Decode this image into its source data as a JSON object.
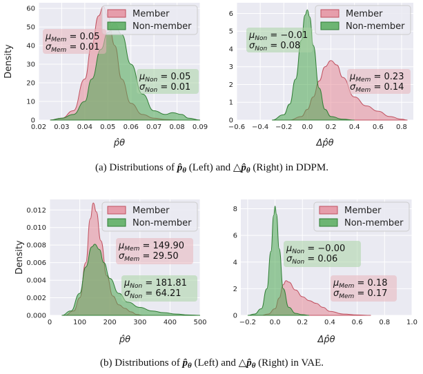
{
  "colors": {
    "member": "#e58a98",
    "member_edge": "#c0505f",
    "non": "#4da852",
    "non_edge": "#2f7d34",
    "plot_bg": "#eaeaf2",
    "grid": "#ffffff"
  },
  "captions": {
    "a": {
      "prefix": "(a)  Distributions of",
      "left": "(Left) and",
      "right": "(Right) in DDPM."
    },
    "b": {
      "prefix": "(b)  Distributions of",
      "left": "(Left) and",
      "right": "(Right) in VAE."
    }
  },
  "chart_data": [
    {
      "id": "ddpm-left",
      "type": "area",
      "ylabel": "Density",
      "xlabel": "p̂θ",
      "xlim": [
        0.02,
        0.09
      ],
      "ylim": [
        0,
        63
      ],
      "xticks": [
        "0.02",
        "0.03",
        "0.04",
        "0.05",
        "0.06",
        "0.07",
        "0.08",
        "0.09"
      ],
      "yticks": [
        "0",
        "10",
        "20",
        "30",
        "40",
        "50",
        "60"
      ],
      "grid": true,
      "legend": {
        "position": "top-right",
        "entries": [
          "Member",
          "Non-member"
        ]
      },
      "series": [
        {
          "name": "Member",
          "x": [
            0.025,
            0.03,
            0.035,
            0.04,
            0.043,
            0.046,
            0.048,
            0.05,
            0.053,
            0.056,
            0.06,
            0.065,
            0.07,
            0.075,
            0.08
          ],
          "y": [
            0,
            1,
            5,
            22,
            40,
            56,
            61,
            56,
            40,
            22,
            9,
            3,
            1,
            0.3,
            0
          ]
        },
        {
          "name": "Non-member",
          "x": [
            0.025,
            0.03,
            0.035,
            0.04,
            0.043,
            0.047,
            0.05,
            0.053,
            0.056,
            0.06,
            0.065,
            0.07,
            0.075,
            0.078,
            0.082,
            0.085,
            0.09
          ],
          "y": [
            0,
            1,
            3,
            10,
            22,
            38,
            47,
            52,
            46,
            30,
            14,
            5,
            3,
            4,
            3,
            1,
            0
          ]
        }
      ],
      "annotations": [
        {
          "series": "Member",
          "mu_label": "μ",
          "mu_sub": "Mem",
          "mu": "0.05",
          "sigma_label": "σ",
          "sigma_sub": "Mem",
          "sigma": "0.01"
        },
        {
          "series": "Non-member",
          "mu_label": "μ",
          "mu_sub": "Non",
          "mu": "0.05",
          "sigma_label": "σ",
          "sigma_sub": "Non",
          "sigma": "0.01"
        }
      ]
    },
    {
      "id": "ddpm-right",
      "type": "area",
      "ylabel": "",
      "xlabel": "Δp̂θ",
      "xlim": [
        -0.6,
        0.9
      ],
      "ylim": [
        0,
        6.6
      ],
      "xticks": [
        "−0.6",
        "−0.4",
        "−0.2",
        "0.0",
        "0.2",
        "0.4",
        "0.6",
        "0.8"
      ],
      "yticks": [
        "0",
        "1",
        "2",
        "3",
        "4",
        "5",
        "6"
      ],
      "grid": true,
      "legend": {
        "position": "top-right",
        "entries": [
          "Member",
          "Non-member"
        ]
      },
      "series": [
        {
          "name": "Member",
          "x": [
            -0.15,
            -0.05,
            0.0,
            0.05,
            0.1,
            0.15,
            0.2,
            0.25,
            0.3,
            0.4,
            0.5,
            0.6,
            0.7,
            0.8,
            0.85
          ],
          "y": [
            0,
            0.2,
            0.6,
            1.3,
            2.2,
            3.0,
            3.35,
            3.1,
            2.4,
            1.3,
            0.8,
            0.5,
            0.2,
            0.05,
            0
          ]
        },
        {
          "name": "Non-member",
          "x": [
            -0.3,
            -0.2,
            -0.15,
            -0.1,
            -0.05,
            -0.02,
            0.0,
            0.02,
            0.05,
            0.1,
            0.15,
            0.2,
            0.3,
            0.4
          ],
          "y": [
            0,
            0.3,
            0.9,
            2.3,
            4.5,
            5.9,
            6.2,
            5.8,
            4.2,
            1.8,
            0.6,
            0.2,
            0.05,
            0
          ]
        }
      ],
      "annotations": [
        {
          "series": "Non-member",
          "mu_label": "μ",
          "mu_sub": "Non",
          "mu": "−0.01",
          "sigma_label": "σ",
          "sigma_sub": "Non",
          "sigma": "0.08"
        },
        {
          "series": "Member",
          "mu_label": "μ",
          "mu_sub": "Mem",
          "mu": "0.23",
          "sigma_label": "σ",
          "sigma_sub": "Mem",
          "sigma": "0.14"
        }
      ]
    },
    {
      "id": "vae-left",
      "type": "area",
      "ylabel": "Density",
      "xlabel": "p̂θ",
      "xlim": [
        0,
        500
      ],
      "ylim": [
        0,
        0.0132
      ],
      "xticks": [
        "0",
        "100",
        "200",
        "300",
        "400",
        "500"
      ],
      "yticks": [
        "0.000",
        "0.002",
        "0.004",
        "0.006",
        "0.008",
        "0.010",
        "0.012"
      ],
      "grid": true,
      "legend": {
        "position": "top-right",
        "entries": [
          "Member",
          "Non-member"
        ]
      },
      "series": [
        {
          "name": "Member",
          "x": [
            50,
            80,
            100,
            120,
            135,
            145,
            155,
            170,
            190,
            210,
            230,
            250,
            270,
            290,
            310
          ],
          "y": [
            0,
            0.0005,
            0.002,
            0.006,
            0.011,
            0.0128,
            0.0118,
            0.0085,
            0.0045,
            0.0022,
            0.0012,
            0.0008,
            0.0004,
            0.0001,
            0
          ]
        },
        {
          "name": "Non-member",
          "x": [
            40,
            70,
            100,
            120,
            140,
            150,
            165,
            180,
            200,
            230,
            260,
            300,
            340,
            380,
            420,
            460,
            500
          ],
          "y": [
            0,
            0.0005,
            0.0025,
            0.0055,
            0.0078,
            0.0081,
            0.0075,
            0.006,
            0.0042,
            0.0025,
            0.0015,
            0.0009,
            0.0005,
            0.0003,
            0.00015,
            5e-05,
            0
          ]
        }
      ],
      "annotations": [
        {
          "series": "Member",
          "mu_label": "μ",
          "mu_sub": "Mem",
          "mu": "149.90",
          "sigma_label": "σ",
          "sigma_sub": "Mem",
          "sigma": "29.50"
        },
        {
          "series": "Non-member",
          "mu_label": "μ",
          "mu_sub": "Non",
          "mu": "181.81",
          "sigma_label": "σ",
          "sigma_sub": "Non",
          "sigma": "64.21"
        }
      ]
    },
    {
      "id": "vae-right",
      "type": "area",
      "ylabel": "",
      "xlabel": "Δp̂θ",
      "xlim": [
        -0.25,
        1.0
      ],
      "ylim": [
        0,
        8.7
      ],
      "xticks": [
        "−0.2",
        "0.0",
        "0.2",
        "0.4",
        "0.6",
        "0.8",
        "1.0"
      ],
      "yticks": [
        "0",
        "2",
        "4",
        "6",
        "8"
      ],
      "grid": true,
      "legend": {
        "position": "top-right",
        "entries": [
          "Member",
          "Non-member"
        ]
      },
      "series": [
        {
          "name": "Member",
          "x": [
            -0.1,
            -0.05,
            0.0,
            0.03,
            0.06,
            0.08,
            0.1,
            0.15,
            0.2,
            0.25,
            0.3,
            0.35,
            0.4,
            0.5,
            0.6,
            0.7
          ],
          "y": [
            0,
            0.1,
            0.5,
            1.3,
            2.3,
            2.6,
            2.5,
            1.9,
            1.4,
            1.1,
            0.9,
            0.6,
            0.3,
            0.1,
            0.03,
            0
          ]
        },
        {
          "name": "Non-member",
          "x": [
            -0.2,
            -0.15,
            -0.1,
            -0.06,
            -0.03,
            -0.01,
            0.0,
            0.01,
            0.03,
            0.06,
            0.1,
            0.15,
            0.2,
            0.25
          ],
          "y": [
            0,
            0.1,
            0.5,
            2.0,
            4.8,
            7.5,
            8.2,
            7.6,
            5.0,
            2.0,
            0.6,
            0.15,
            0.05,
            0
          ]
        }
      ],
      "annotations": [
        {
          "series": "Non-member",
          "mu_label": "μ",
          "mu_sub": "Non",
          "mu": "−0.00",
          "sigma_label": "σ",
          "sigma_sub": "Non",
          "sigma": "0.06"
        },
        {
          "series": "Member",
          "mu_label": "μ",
          "mu_sub": "Mem",
          "mu": "0.18",
          "sigma_label": "σ",
          "sigma_sub": "Mem",
          "sigma": "0.17"
        }
      ]
    }
  ]
}
